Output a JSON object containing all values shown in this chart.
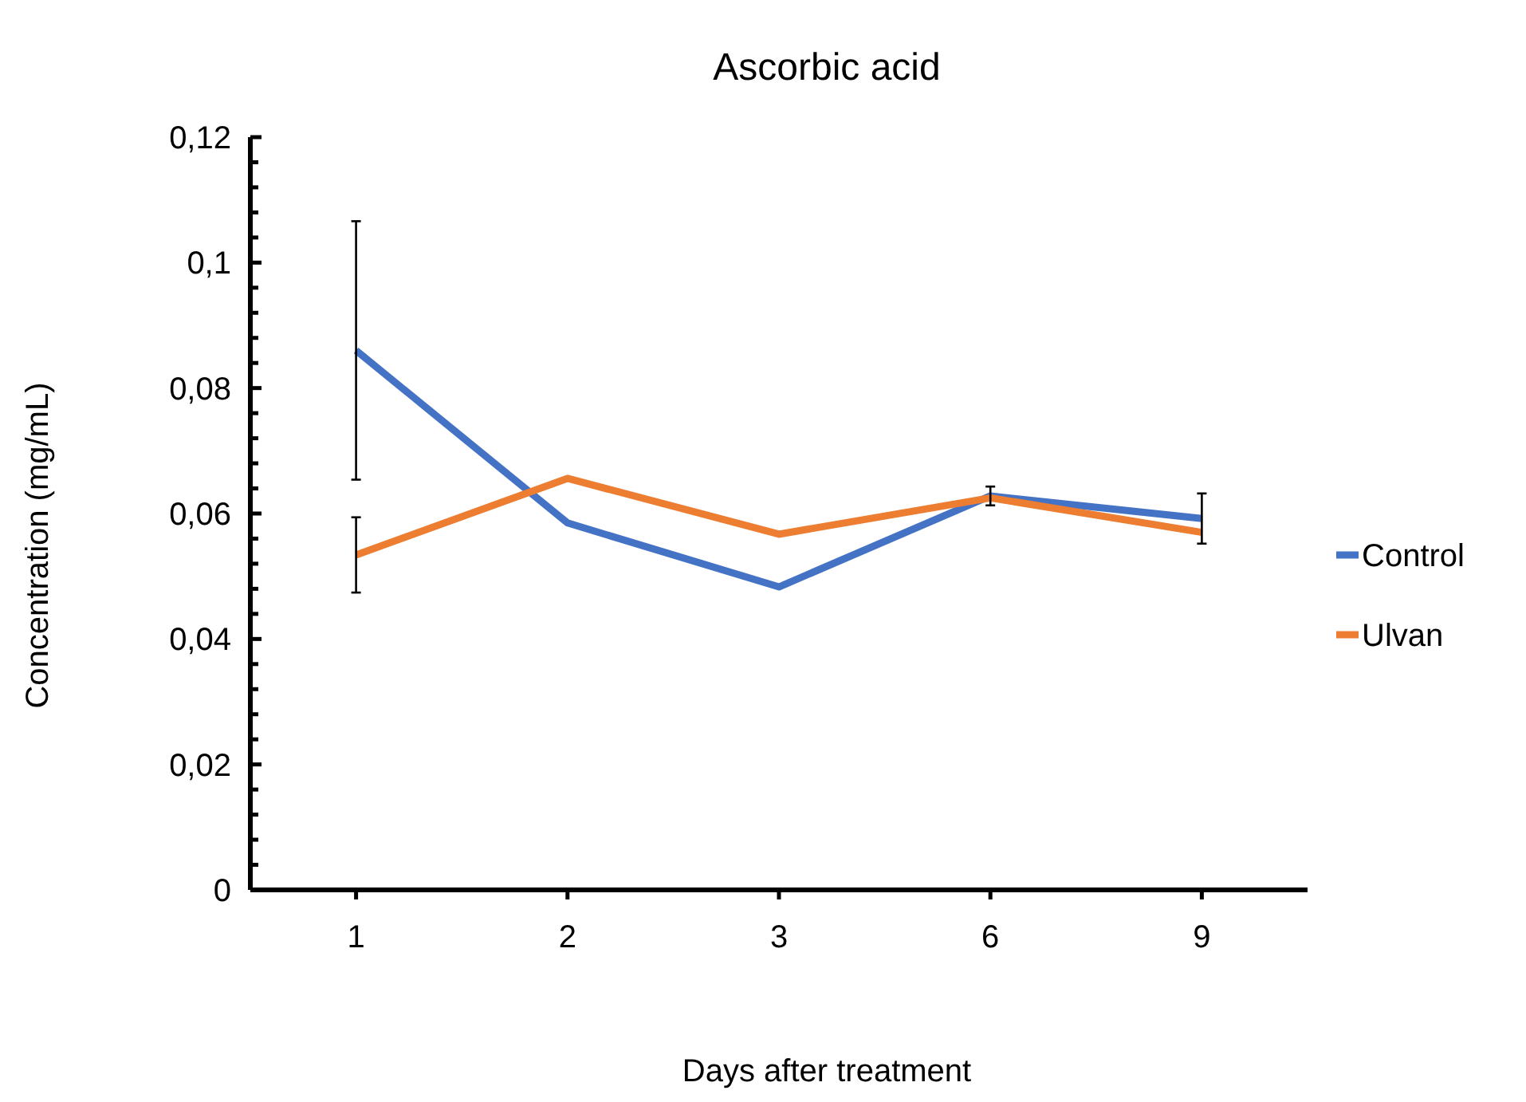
{
  "chart_data": {
    "type": "line",
    "title": "Ascorbic acid",
    "xlabel": "Days after treatment",
    "ylabel": "Concentration (mg/mL)",
    "categories": [
      "1",
      "2",
      "3",
      "6",
      "9"
    ],
    "series": [
      {
        "name": "Control",
        "color": "#4472c4",
        "values": [
          0.086,
          0.0585,
          0.0483,
          0.0628,
          0.0592
        ],
        "errors": [
          0.0206,
          null,
          null,
          0.0015,
          0.004
        ]
      },
      {
        "name": "Ulvan",
        "color": "#ed7d31",
        "values": [
          0.0534,
          0.0656,
          0.0567,
          0.0625,
          0.057
        ],
        "errors": [
          0.006,
          null,
          null,
          null,
          null
        ]
      }
    ],
    "ylim": [
      0,
      0.12
    ],
    "yticks": [
      {
        "value": 0,
        "label": "0"
      },
      {
        "value": 0.004,
        "label": null
      },
      {
        "value": 0.008,
        "label": null
      },
      {
        "value": 0.012,
        "label": null
      },
      {
        "value": 0.016,
        "label": null
      },
      {
        "value": 0.02,
        "label": "0,02"
      },
      {
        "value": 0.024,
        "label": null
      },
      {
        "value": 0.028,
        "label": null
      },
      {
        "value": 0.032,
        "label": null
      },
      {
        "value": 0.036,
        "label": null
      },
      {
        "value": 0.04,
        "label": "0,04"
      },
      {
        "value": 0.044,
        "label": null
      },
      {
        "value": 0.048,
        "label": null
      },
      {
        "value": 0.052,
        "label": null
      },
      {
        "value": 0.056,
        "label": null
      },
      {
        "value": 0.06,
        "label": "0,06"
      },
      {
        "value": 0.064,
        "label": null
      },
      {
        "value": 0.068,
        "label": null
      },
      {
        "value": 0.072,
        "label": null
      },
      {
        "value": 0.076,
        "label": null
      },
      {
        "value": 0.08,
        "label": "0,08"
      },
      {
        "value": 0.084,
        "label": null
      },
      {
        "value": 0.088,
        "label": null
      },
      {
        "value": 0.092,
        "label": null
      },
      {
        "value": 0.096,
        "label": null
      },
      {
        "value": 0.1,
        "label": "0,1"
      },
      {
        "value": 0.104,
        "label": null
      },
      {
        "value": 0.108,
        "label": null
      },
      {
        "value": 0.112,
        "label": null
      },
      {
        "value": 0.116,
        "label": null
      },
      {
        "value": 0.12,
        "label": "0,12"
      }
    ],
    "legend": "right",
    "grid": false,
    "marker": "none",
    "line_style": "solid"
  }
}
